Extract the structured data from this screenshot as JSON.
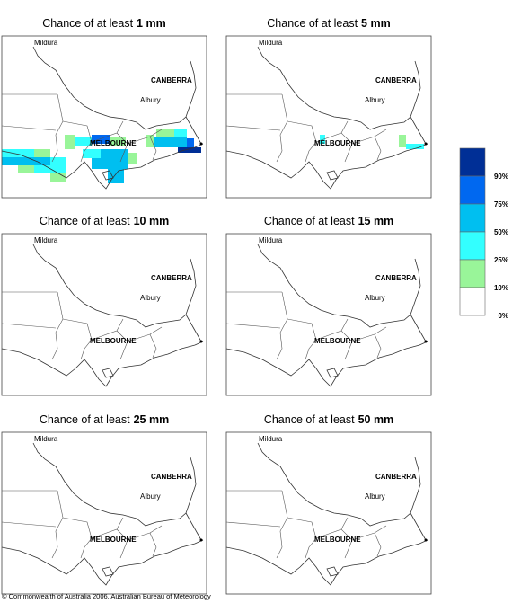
{
  "panels": [
    {
      "prefix": "Chance of at least",
      "amount": "1 mm"
    },
    {
      "prefix": "Chance of at least",
      "amount": "5 mm"
    },
    {
      "prefix": "Chance of at least",
      "amount": "10 mm"
    },
    {
      "prefix": "Chance of at least",
      "amount": "15 mm"
    },
    {
      "prefix": "Chance of at least",
      "amount": "25 mm"
    },
    {
      "prefix": "Chance of at least",
      "amount": "50 mm"
    }
  ],
  "map_labels": {
    "mildura": "Mildura",
    "canberra": "CANBERRA",
    "albury": "Albury",
    "melbourne": "MELBOURNE"
  },
  "legend": {
    "colors": [
      "#002f96",
      "#0068f0",
      "#00bff0",
      "#33ffff",
      "#99f599",
      "#ffffff"
    ],
    "labels": [
      "90%",
      "75%",
      "50%",
      "25%",
      "10%",
      "0%"
    ]
  },
  "footer": "© Commonwealth of Australia 2006, Australian Bureau of Meteorology"
}
